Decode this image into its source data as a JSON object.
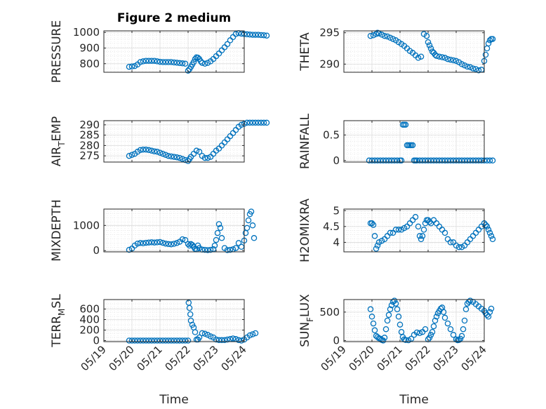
{
  "title": "Figure 2 medium",
  "x_ticks": [
    "05/19",
    "05/20",
    "05/21",
    "05/22",
    "05/23",
    "05/24"
  ],
  "x_label": "Time",
  "marker_color": "#0072BD",
  "chart_data": [
    {
      "type": "scatter",
      "ylabel_main": "PRESSURE",
      "ylabel_sub": "",
      "ylabel_tail": "",
      "ylim": [
        745,
        1010
      ],
      "yticks": [
        800,
        900,
        1000
      ],
      "ytick_labels": [
        "800",
        "900",
        "1000"
      ],
      "x": [
        0.9,
        1.0,
        1.1,
        1.2,
        1.3,
        1.4,
        1.5,
        1.6,
        1.7,
        1.8,
        1.9,
        2.0,
        2.1,
        2.2,
        2.3,
        2.4,
        2.5,
        2.6,
        2.7,
        2.8,
        2.9,
        3.0,
        3.05,
        3.1,
        3.15,
        3.2,
        3.25,
        3.3,
        3.35,
        3.4,
        3.45,
        3.5,
        3.6,
        3.7,
        3.8,
        3.9,
        4.0,
        4.1,
        4.2,
        4.3,
        4.4,
        4.5,
        4.6,
        4.7,
        4.8,
        4.9,
        5.0,
        5.1,
        5.2,
        5.3,
        5.4,
        5.5,
        5.6,
        5.7,
        5.8
      ],
      "y": [
        780,
        782,
        785,
        795,
        810,
        815,
        818,
        818,
        818,
        818,
        815,
        812,
        810,
        810,
        810,
        810,
        808,
        806,
        804,
        802,
        800,
        755,
        765,
        780,
        795,
        810,
        830,
        840,
        838,
        830,
        815,
        805,
        800,
        805,
        815,
        830,
        848,
        865,
        885,
        905,
        925,
        950,
        970,
        990,
        995,
        992,
        990,
        988,
        986,
        985,
        985,
        985,
        983,
        982,
        980
      ]
    },
    {
      "type": "scatter",
      "ylabel_main": "THETA",
      "ylabel_sub": "",
      "ylabel_tail": "",
      "ylim": [
        288.7,
        295.3
      ],
      "yticks": [
        290,
        295
      ],
      "ytick_labels": [
        "290",
        "295"
      ],
      "x": [
        0.95,
        1.05,
        1.15,
        1.2,
        1.25,
        1.35,
        1.45,
        1.55,
        1.65,
        1.75,
        1.85,
        1.95,
        2.05,
        2.15,
        2.25,
        2.35,
        2.45,
        2.55,
        2.65,
        2.75,
        2.85,
        2.95,
        3.0,
        3.05,
        3.1,
        3.15,
        3.2,
        3.25,
        3.3,
        3.4,
        3.5,
        3.6,
        3.7,
        3.8,
        3.9,
        4.0,
        4.1,
        4.2,
        4.3,
        4.4,
        4.5,
        4.6,
        4.7,
        4.8,
        4.9,
        5.0,
        5.05,
        5.1,
        5.15,
        5.2,
        5.25,
        5.3
      ],
      "y": [
        294.5,
        294.6,
        294.8,
        295.0,
        294.9,
        294.7,
        294.5,
        294.4,
        294.2,
        294.0,
        293.8,
        293.5,
        293.2,
        292.9,
        292.5,
        292.1,
        291.8,
        291.4,
        291.0,
        291.2,
        294.8,
        294.5,
        293.5,
        293.0,
        292.5,
        292.0,
        291.8,
        291.5,
        291.3,
        291.2,
        291.1,
        291.0,
        290.8,
        290.7,
        290.6,
        290.5,
        290.3,
        290.0,
        289.8,
        289.6,
        289.5,
        289.3,
        289.2,
        289.0,
        289.1,
        290.5,
        291.5,
        292.5,
        293.3,
        293.8,
        294.0,
        294.0
      ]
    },
    {
      "type": "scatter",
      "ylabel_main": "AIR",
      "ylabel_sub": "T",
      "ylabel_tail": "EMP",
      "ylim": [
        272,
        292
      ],
      "yticks": [
        275,
        280,
        285,
        290
      ],
      "ytick_labels": [
        "275",
        "280",
        "285",
        "290"
      ],
      "x": [
        0.9,
        1.0,
        1.1,
        1.2,
        1.3,
        1.4,
        1.5,
        1.6,
        1.7,
        1.8,
        1.9,
        2.0,
        2.1,
        2.2,
        2.3,
        2.4,
        2.5,
        2.6,
        2.7,
        2.8,
        2.9,
        3.0,
        3.05,
        3.1,
        3.2,
        3.3,
        3.4,
        3.5,
        3.6,
        3.7,
        3.8,
        3.9,
        4.0,
        4.1,
        4.2,
        4.3,
        4.4,
        4.5,
        4.6,
        4.7,
        4.8,
        4.9,
        5.0,
        5.1,
        5.2,
        5.3,
        5.4,
        5.5,
        5.6,
        5.7,
        5.8
      ],
      "y": [
        275.0,
        275.5,
        276.0,
        277.0,
        277.8,
        278.0,
        278.0,
        277.8,
        277.5,
        277.2,
        277.0,
        276.5,
        276.0,
        275.5,
        275.0,
        274.7,
        274.5,
        274.3,
        274.0,
        273.5,
        273.0,
        272.5,
        273.5,
        274.5,
        276.0,
        277.5,
        277.0,
        275.0,
        274.0,
        274.0,
        274.5,
        276.0,
        277.5,
        278.5,
        280.0,
        281.5,
        283.0,
        284.5,
        286.0,
        287.5,
        289.0,
        290.0,
        290.5,
        291.0,
        291.0,
        291.0,
        291.0,
        291.0,
        291.0,
        291.0,
        291.0
      ]
    },
    {
      "type": "scatter",
      "ylabel_main": "RAINFALL",
      "ylabel_sub": "",
      "ylabel_tail": "",
      "ylim": [
        -0.03,
        0.78
      ],
      "yticks": [
        0,
        0.5
      ],
      "ytick_labels": [
        "0",
        "0.5"
      ],
      "x": [
        0.9,
        1.0,
        1.1,
        1.2,
        1.3,
        1.4,
        1.5,
        1.6,
        1.7,
        1.8,
        1.9,
        2.0,
        2.05,
        2.1,
        2.15,
        2.2,
        2.25,
        2.3,
        2.35,
        2.4,
        2.45,
        2.5,
        2.55,
        2.6,
        2.7,
        2.8,
        2.9,
        3.0,
        3.1,
        3.2,
        3.3,
        3.4,
        3.5,
        3.6,
        3.7,
        3.8,
        3.9,
        4.0,
        4.1,
        4.2,
        4.3,
        4.4,
        4.5,
        4.6,
        4.7,
        4.8,
        4.9,
        5.0,
        5.1,
        5.2,
        5.3
      ],
      "y": [
        0,
        0,
        0,
        0,
        0,
        0,
        0,
        0,
        0,
        0,
        0,
        0,
        0,
        0.7,
        0.7,
        0.7,
        0.3,
        0.3,
        0.3,
        0.3,
        0.3,
        0,
        0,
        0,
        0,
        0,
        0,
        0,
        0,
        0,
        0,
        0,
        0,
        0,
        0,
        0,
        0,
        0,
        0,
        0,
        0,
        0,
        0,
        0,
        0,
        0,
        0,
        0,
        0,
        0,
        0
      ]
    },
    {
      "type": "scatter",
      "ylabel_main": "MIXDEPTH",
      "ylabel_sub": "",
      "ylabel_tail": "",
      "ylim": [
        -50,
        1650
      ],
      "yticks": [
        0,
        1000
      ],
      "ytick_labels": [
        "0",
        "1000"
      ],
      "x": [
        0.9,
        1.0,
        1.1,
        1.2,
        1.3,
        1.4,
        1.5,
        1.6,
        1.7,
        1.8,
        1.9,
        2.0,
        2.1,
        2.2,
        2.3,
        2.4,
        2.5,
        2.6,
        2.7,
        2.8,
        2.9,
        3.0,
        3.05,
        3.1,
        3.15,
        3.2,
        3.25,
        3.3,
        3.35,
        3.4,
        3.5,
        3.6,
        3.7,
        3.8,
        3.9,
        3.95,
        4.0,
        4.05,
        4.1,
        4.15,
        4.2,
        4.3,
        4.4,
        4.5,
        4.6,
        4.7,
        4.8,
        4.9,
        5.0,
        5.05,
        5.1,
        5.15,
        5.2,
        5.25,
        5.3,
        5.35
      ],
      "y": [
        30,
        80,
        200,
        280,
        300,
        290,
        310,
        320,
        330,
        320,
        330,
        340,
        310,
        280,
        260,
        250,
        270,
        300,
        350,
        450,
        420,
        260,
        200,
        260,
        220,
        150,
        70,
        50,
        200,
        100,
        40,
        30,
        20,
        30,
        60,
        200,
        420,
        700,
        1050,
        900,
        500,
        100,
        20,
        30,
        50,
        100,
        300,
        150,
        400,
        700,
        900,
        1200,
        1450,
        1550,
        1000,
        500
      ]
    },
    {
      "type": "scatter",
      "ylabel_main": "H2OMIXRA",
      "ylabel_sub": "",
      "ylabel_tail": "",
      "ylim": [
        3.7,
        5.05
      ],
      "yticks": [
        4,
        4.5,
        5
      ],
      "ytick_labels": [
        "4",
        "4.5",
        "5"
      ],
      "x": [
        0.95,
        1.0,
        1.05,
        1.1,
        1.15,
        1.2,
        1.25,
        1.35,
        1.45,
        1.55,
        1.65,
        1.75,
        1.85,
        1.95,
        2.05,
        2.15,
        2.25,
        2.35,
        2.45,
        2.55,
        2.65,
        2.7,
        2.75,
        2.8,
        2.85,
        2.9,
        2.95,
        3.0,
        3.05,
        3.1,
        3.2,
        3.3,
        3.4,
        3.5,
        3.6,
        3.7,
        3.8,
        3.9,
        4.0,
        4.1,
        4.2,
        4.3,
        4.4,
        4.5,
        4.6,
        4.7,
        4.8,
        4.9,
        5.0,
        5.05,
        5.1,
        5.15,
        5.2,
        5.25,
        5.3
      ],
      "y": [
        4.6,
        4.6,
        4.55,
        4.2,
        3.8,
        3.9,
        4.0,
        4.05,
        4.1,
        4.2,
        4.3,
        4.3,
        4.4,
        4.4,
        4.4,
        4.45,
        4.5,
        4.6,
        4.7,
        4.8,
        4.5,
        4.2,
        4.1,
        4.2,
        4.4,
        4.6,
        4.7,
        4.7,
        4.65,
        4.6,
        4.7,
        4.6,
        4.5,
        4.4,
        4.3,
        4.1,
        4.0,
        4.0,
        3.9,
        3.85,
        3.85,
        3.9,
        4.0,
        4.1,
        4.2,
        4.3,
        4.4,
        4.5,
        4.6,
        4.55,
        4.5,
        4.4,
        4.3,
        4.2,
        4.1
      ]
    },
    {
      "type": "scatter",
      "ylabel_main": "TERR",
      "ylabel_sub": "M",
      "ylabel_tail": "SL",
      "ylim": [
        -20,
        780
      ],
      "yticks": [
        0,
        200,
        400,
        600
      ],
      "ytick_labels": [
        "0",
        "200",
        "400",
        "600"
      ],
      "x": [
        0.9,
        1.0,
        1.1,
        1.2,
        1.3,
        1.4,
        1.5,
        1.6,
        1.7,
        1.8,
        1.9,
        2.0,
        2.1,
        2.2,
        2.3,
        2.4,
        2.5,
        2.6,
        2.7,
        2.8,
        2.9,
        3.0,
        3.02,
        3.05,
        3.08,
        3.1,
        3.15,
        3.2,
        3.25,
        3.3,
        3.35,
        3.4,
        3.5,
        3.6,
        3.7,
        3.8,
        3.9,
        4.0,
        4.1,
        4.2,
        4.3,
        4.4,
        4.5,
        4.6,
        4.7,
        4.8,
        4.9,
        5.0,
        5.1,
        5.2,
        5.3,
        5.4
      ],
      "y": [
        0,
        0,
        0,
        0,
        0,
        0,
        0,
        0,
        0,
        0,
        0,
        0,
        0,
        0,
        0,
        0,
        0,
        0,
        0,
        0,
        0,
        0,
        720,
        620,
        500,
        380,
        300,
        250,
        160,
        20,
        20,
        60,
        140,
        130,
        110,
        80,
        60,
        20,
        10,
        10,
        10,
        20,
        30,
        40,
        30,
        10,
        0,
        20,
        60,
        100,
        120,
        140
      ]
    },
    {
      "type": "scatter",
      "ylabel_main": "SUN",
      "ylabel_sub": "F",
      "ylabel_tail": "LUX",
      "ylim": [
        -20,
        720
      ],
      "yticks": [
        0,
        500
      ],
      "ytick_labels": [
        "0",
        "500"
      ],
      "x": [
        0.95,
        1.0,
        1.05,
        1.1,
        1.15,
        1.2,
        1.25,
        1.3,
        1.35,
        1.4,
        1.45,
        1.5,
        1.55,
        1.6,
        1.65,
        1.7,
        1.75,
        1.8,
        1.85,
        1.9,
        1.95,
        2.0,
        2.05,
        2.1,
        2.15,
        2.2,
        2.3,
        2.4,
        2.5,
        2.6,
        2.7,
        2.8,
        2.9,
        3.0,
        3.05,
        3.1,
        3.15,
        3.2,
        3.25,
        3.3,
        3.35,
        3.4,
        3.45,
        3.5,
        3.55,
        3.6,
        3.7,
        3.8,
        3.9,
        4.0,
        4.05,
        4.1,
        4.15,
        4.2,
        4.25,
        4.3,
        4.35,
        4.4,
        4.45,
        4.5,
        4.6,
        4.7,
        4.8,
        4.9,
        5.0,
        5.05,
        5.1,
        5.15,
        5.2,
        5.25
      ],
      "y": [
        550,
        420,
        300,
        180,
        80,
        60,
        40,
        30,
        10,
        0,
        50,
        200,
        350,
        450,
        550,
        620,
        680,
        700,
        650,
        550,
        420,
        280,
        150,
        60,
        20,
        10,
        5,
        30,
        100,
        140,
        130,
        150,
        200,
        20,
        50,
        100,
        150,
        250,
        350,
        420,
        480,
        520,
        560,
        580,
        500,
        400,
        300,
        200,
        100,
        20,
        5,
        10,
        30,
        80,
        200,
        350,
        550,
        650,
        680,
        700,
        680,
        640,
        600,
        560,
        520,
        480,
        450,
        420,
        500,
        560
      ]
    }
  ]
}
